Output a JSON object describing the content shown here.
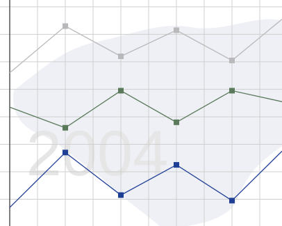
{
  "chart_data": {
    "type": "line",
    "watermark": "2004",
    "x": [
      0,
      2,
      4,
      6,
      8,
      9.8
    ],
    "series": [
      {
        "color": "#b9b9bb",
        "values": [
          5.6,
          7.3,
          6.2,
          7.15,
          6.05,
          7.55
        ]
      },
      {
        "color": "#5b7a5c",
        "values": [
          4.35,
          3.6,
          4.95,
          3.8,
          4.95,
          4.55
        ]
      },
      {
        "color": "#1f3e96",
        "values": [
          0.7,
          2.7,
          1.15,
          2.25,
          0.95,
          2.75
        ]
      }
    ],
    "xlim": [
      0,
      9.8
    ],
    "xticks": [
      1,
      2,
      3,
      4,
      5,
      6,
      7,
      8,
      9
    ],
    "ylim": [
      0,
      8.25
    ],
    "yticks": [
      1,
      2,
      3,
      4,
      5,
      6,
      7,
      8
    ],
    "grid": true
  }
}
